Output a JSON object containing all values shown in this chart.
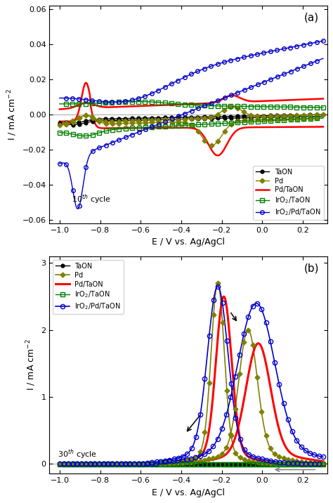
{
  "panel_a": {
    "label": "(a)",
    "cycle_text": "10$^{th}$ cycle",
    "xlim": [
      -1.05,
      0.32
    ],
    "ylim": [
      -0.062,
      0.062
    ],
    "xticks": [
      -1.0,
      -0.8,
      -0.6,
      -0.4,
      -0.2,
      0.0,
      0.2
    ],
    "yticks": [
      -0.06,
      -0.04,
      -0.02,
      0.0,
      0.02,
      0.04,
      0.06
    ],
    "xlabel": "E / V vs. Ag/AgCl",
    "ylabel": "I / mA cm$^{-2}$"
  },
  "panel_b": {
    "label": "(b)",
    "cycle_text": "30$^{th}$ cycle",
    "xlim": [
      -1.05,
      0.32
    ],
    "ylim": [
      -0.15,
      3.1
    ],
    "xticks": [
      -1.0,
      -0.8,
      -0.6,
      -0.4,
      -0.2,
      0.0,
      0.2
    ],
    "yticks": [
      0,
      1,
      2,
      3
    ],
    "xlabel": "E / V vs. Ag/AgCl",
    "ylabel": "I / mA cm$^{-2}$"
  },
  "colors": {
    "TaON": "#000000",
    "Pd": "#808000",
    "PdTaON": "#ff0000",
    "IrO2TaON": "#008000",
    "IrO2PdTaON": "#0000cd"
  }
}
